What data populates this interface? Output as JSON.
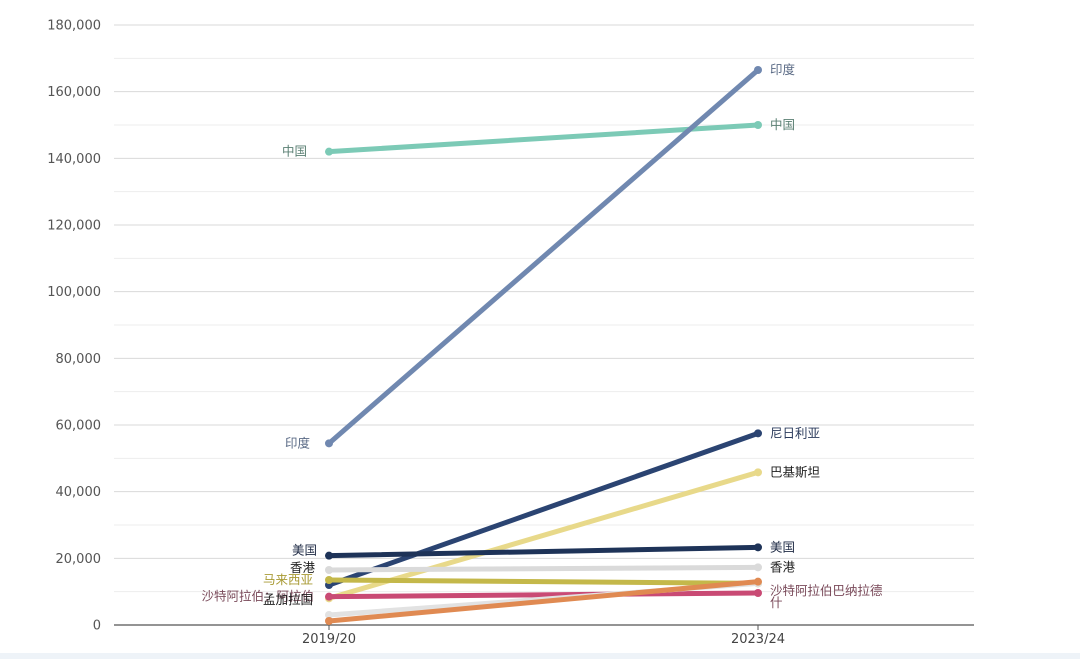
{
  "chart_data": {
    "type": "line",
    "title": "",
    "xlabel": "",
    "ylabel": "",
    "categories": [
      "2019/20",
      "2023/24"
    ],
    "ylim": [
      0,
      180000
    ],
    "yticks": [
      0,
      20000,
      40000,
      60000,
      80000,
      100000,
      120000,
      140000,
      160000,
      180000
    ],
    "ytick_labels": [
      "0",
      "20,000",
      "40,000",
      "60,000",
      "80,000",
      "100,000",
      "120,000",
      "140,000",
      "160,000",
      "180,000"
    ],
    "grid": true,
    "series": [
      {
        "name": "中国",
        "values": [
          142000,
          150000
        ],
        "color": "#7ccab6",
        "label_start": "中国",
        "label_end": "中国",
        "label_color": "#5a7f73"
      },
      {
        "name": "印度",
        "values": [
          54500,
          166500
        ],
        "color": "#7088b0",
        "label_start": "印度",
        "label_end": "印度",
        "label_color": "#5a6a85"
      },
      {
        "name": "尼日利亚",
        "values": [
          12000,
          57500
        ],
        "color": "#2b4472",
        "label_start": "",
        "label_end": "尼日利亚",
        "label_color": "#2b3b5c"
      },
      {
        "name": "巴基斯坦",
        "values": [
          8000,
          45800
        ],
        "color": "#e8d98a",
        "label_start": "",
        "label_end": "巴基斯坦",
        "label_color": "#222222"
      },
      {
        "name": "美国",
        "values": [
          20800,
          23300
        ],
        "color": "#1e3358",
        "label_start": "美国",
        "label_end": "美国",
        "label_color": "#1e2a44"
      },
      {
        "name": "香港",
        "values": [
          16500,
          17300
        ],
        "color": "#dadada",
        "label_start": "香港",
        "label_end": "香港",
        "label_color": "#222222"
      },
      {
        "name": "马来西亚",
        "values": [
          13500,
          12500
        ],
        "color": "#c4b84a",
        "label_start": "马来西亚",
        "label_end": "",
        "label_color": "#a89a34"
      },
      {
        "name": "沙特阿拉伯",
        "values": [
          8500,
          9600
        ],
        "color": "#c94a74",
        "label_start": "沙特阿拉伯：阿拉伯",
        "label_end": "沙特阿拉伯巴纳拉德什",
        "label_color": "#7a4a5a"
      },
      {
        "name": "孟加拉国",
        "values": [
          3000,
          12500
        ],
        "color": "#e2e2e2",
        "label_start": "孟加拉国",
        "label_end": "",
        "label_color": "#222222"
      },
      {
        "name": "",
        "values": [
          1200,
          13000
        ],
        "color": "#e08a52",
        "label_start": "",
        "label_end": "",
        "label_color": "#222222"
      }
    ]
  }
}
